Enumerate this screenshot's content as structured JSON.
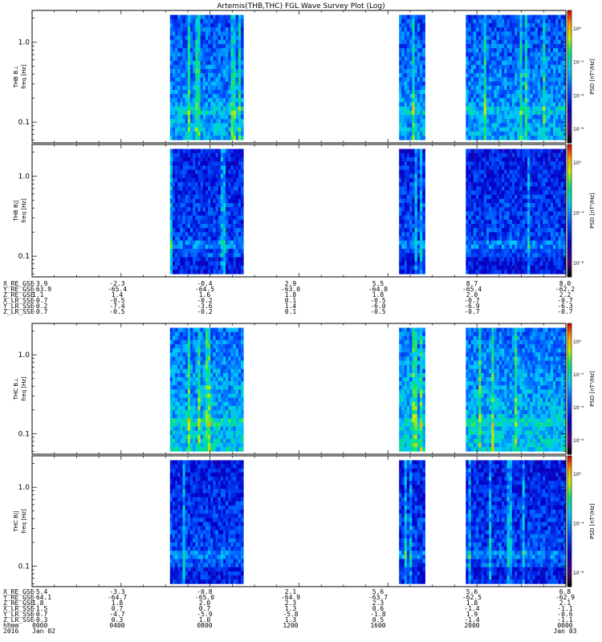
{
  "title": "Artemis(THB,THC) FGL Wave Survey Plot (Log)",
  "chart_data": [
    {
      "type": "heatmap",
      "panel": "THB B⊥",
      "ylabel": "freq [Hz]",
      "panel_label": "THB B⊥",
      "yscale": "log",
      "ylim": [
        0.055,
        2.5
      ],
      "yticks": [
        "1.0",
        "0.1"
      ],
      "colorbar": {
        "label": "PSD [nT²/Hz]",
        "scale": "log",
        "ticks": [
          "10⁰",
          "10⁻²",
          "10⁻⁴",
          "10⁻⁶"
        ]
      },
      "data_intervals": [
        [
          "0612",
          "0930"
        ],
        [
          "1630",
          "1740"
        ],
        [
          "1930",
          "2400"
        ]
      ],
      "note": "Dynamic spectrogram; values vary per time/frequency bin."
    },
    {
      "type": "heatmap",
      "panel": "THB B||",
      "ylabel": "freq [Hz]",
      "panel_label": "THB B||",
      "yscale": "log",
      "ylim": [
        0.055,
        2.5
      ],
      "yticks": [
        "1.0",
        "0.1"
      ],
      "colorbar": {
        "label": "PSD [nT²/Hz]",
        "scale": "log",
        "ticks": [
          "10⁰",
          "10⁻⁴",
          "10⁻⁸"
        ]
      },
      "data_intervals": [
        [
          "0612",
          "0930"
        ],
        [
          "1630",
          "1740"
        ],
        [
          "1930",
          "2400"
        ]
      ]
    },
    {
      "type": "heatmap",
      "panel": "THC B⊥",
      "ylabel": "freq [Hz]",
      "panel_label": "THC B⊥",
      "yscale": "log",
      "ylim": [
        0.055,
        2.5
      ],
      "yticks": [
        "1.0",
        "0.1"
      ],
      "colorbar": {
        "label": "PSD [nT²/Hz]",
        "scale": "log",
        "ticks": [
          "10⁰",
          "10⁻²",
          "10⁻⁴",
          "10⁻⁶"
        ]
      },
      "data_intervals": [
        [
          "0612",
          "0930"
        ],
        [
          "1630",
          "1740"
        ],
        [
          "1930",
          "2400"
        ]
      ]
    },
    {
      "type": "heatmap",
      "panel": "THC B||",
      "ylabel": "freq [Hz]",
      "panel_label": "THC B||",
      "yscale": "log",
      "ylim": [
        0.055,
        2.5
      ],
      "yticks": [
        "1.0",
        "0.1"
      ],
      "colorbar": {
        "label": "PSD [nT²/Hz]",
        "scale": "log",
        "ticks": [
          "10⁰",
          "10⁻⁴",
          "10⁻⁸"
        ]
      },
      "data_intervals": [
        [
          "0612",
          "0930"
        ],
        [
          "1630",
          "1740"
        ],
        [
          "1930",
          "2400"
        ]
      ]
    }
  ],
  "ephem_top": {
    "labels": [
      "X_RE_GSE",
      "Y_RE_GSE",
      "Z_RE_GSE",
      "X_LR_SSE",
      "Y_LR_SSE",
      "Z_LR_SSE"
    ],
    "columns": [
      [
        "-3.9",
        "-63.9",
        "1.1",
        "-0.7",
        "-0.2",
        "-0.7"
      ],
      [
        "-2.3",
        "-65.4",
        "1.4",
        "-0.5",
        "-7.4",
        "-0.5"
      ],
      [
        "-0.4",
        "-64.5",
        "1.6",
        "-0.2",
        "-3.6",
        "-0.2"
      ],
      [
        "2.9",
        "-63.0",
        "1.8",
        "0.1",
        "1.4",
        "0.1"
      ],
      [
        "5.5",
        "-64.8",
        "1.8",
        "-0.5",
        "-6.0",
        "-0.5"
      ],
      [
        "8.7",
        "-65.4",
        "2.0",
        "-0.7",
        "-6.9",
        "-0.7"
      ],
      [
        "8.0",
        "-62.2",
        "2.2",
        "-0.7",
        "-6.3",
        "-0.7"
      ]
    ]
  },
  "ephem_bottom": {
    "labels": [
      "X_RE_GSE",
      "Y_RE_GSE",
      "Z_RE_GSE",
      "X_LR_SSE",
      "Y_LR_SSE",
      "Z_LR_SSE",
      "hhmm",
      "2016"
    ],
    "columns": [
      [
        "-5.4",
        "-64.1",
        "1.8",
        "-1.5",
        "-0.7",
        "-0.3",
        "0000",
        "Jan 02"
      ],
      [
        "-3.3",
        "-64.7",
        "1.8",
        "0.7",
        "-4.7",
        "0.3",
        "0400",
        ""
      ],
      [
        "-0.8",
        "-65.0",
        "2.0",
        "0.7",
        "-5.9",
        "1.0",
        "0800",
        ""
      ],
      [
        "2.1",
        "-64.9",
        "2.3",
        "1.3",
        "-5.8",
        "1.3",
        "1200",
        ""
      ],
      [
        "5.6",
        "-63.7",
        "2.3",
        "0.6",
        "-1.8",
        "0.5",
        "1600",
        ""
      ],
      [
        "5.6",
        "-62.5",
        "1.8",
        "-1.4",
        "1.9",
        "-1.4",
        "2000",
        ""
      ],
      [
        "6.8",
        "-62.9",
        "2.1",
        "-1.1",
        "-0.6",
        "-1.1",
        "0000",
        "Jan 03"
      ]
    ]
  }
}
